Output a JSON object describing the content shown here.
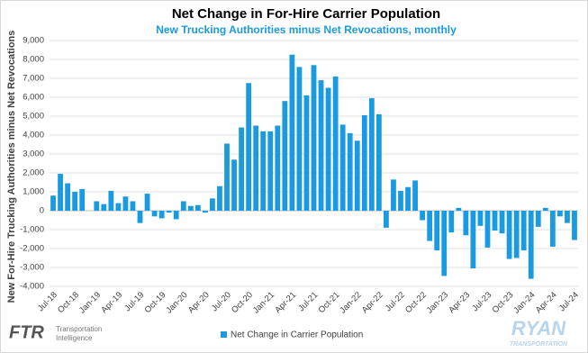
{
  "chart_data": {
    "type": "bar",
    "title": "Net Change in For-Hire Carrier Population",
    "subtitle": "New Trucking Authorities minus Net Revocations, monthly",
    "y_label": "New For-Hire Trucking Authorities minus Net Revocations",
    "categories": [
      "Jul-18",
      null,
      null,
      "Oct-18",
      null,
      null,
      "Jan-19",
      null,
      null,
      "Apr-19",
      null,
      null,
      "Jul-19",
      null,
      null,
      "Oct-19",
      null,
      null,
      "Jan-20",
      null,
      null,
      "Apr-20",
      null,
      null,
      "Jul-20",
      null,
      null,
      "Oct-20",
      null,
      null,
      "Jan-21",
      null,
      null,
      "Apr-21",
      null,
      null,
      "Jul-21",
      null,
      null,
      "Oct-21",
      null,
      null,
      "Jan-22",
      null,
      null,
      "Apr-22",
      null,
      null,
      "Jul-22",
      null,
      null,
      "Oct-22",
      null,
      null,
      "Jan-23",
      null,
      null,
      "Apr-23",
      null,
      null,
      "Jul-23",
      null,
      null,
      "Oct-23",
      null,
      null,
      "Jan-24",
      null,
      null,
      "Apr-24",
      null,
      null,
      "Jul-24"
    ],
    "series": [
      {
        "name": "Net Change in Carrier Population",
        "color": "#1a9ae0",
        "values": [
          800,
          1950,
          1450,
          1000,
          1150,
          0,
          500,
          350,
          1050,
          400,
          750,
          500,
          -650,
          900,
          -300,
          -400,
          -100,
          -450,
          500,
          250,
          300,
          -100,
          650,
          1300,
          3550,
          2700,
          4400,
          6750,
          4500,
          4200,
          4200,
          4500,
          5800,
          8250,
          7600,
          6100,
          7700,
          6900,
          6500,
          7100,
          4550,
          4100,
          3700,
          5050,
          5950,
          5100,
          -900,
          1650,
          1050,
          1250,
          1600,
          -500,
          -1600,
          -2100,
          -3450,
          -1150,
          150,
          -1300,
          -3050,
          -800,
          -1950,
          -1050,
          -1200,
          -2550,
          -2500,
          -2100,
          -3600,
          -850,
          150,
          -1900,
          -300,
          -650,
          -1550
        ]
      }
    ],
    "ylim": [
      -4000,
      9000
    ],
    "yticks": [
      {
        "value": -4000,
        "label": "-4,000"
      },
      {
        "value": -3000,
        "label": "-3,000"
      },
      {
        "value": -2000,
        "label": "-2,000"
      },
      {
        "value": -1000,
        "label": "-1,000"
      },
      0,
      {
        "value": 1000,
        "label": "1,000"
      },
      {
        "value": 2000,
        "label": "2,000"
      },
      {
        "value": 3000,
        "label": "3,000"
      },
      {
        "value": 4000,
        "label": "4,000"
      },
      {
        "value": 5000,
        "label": "5,000"
      },
      {
        "value": 6000,
        "label": "6,000"
      },
      {
        "value": 7000,
        "label": "7,000"
      },
      {
        "value": 8000,
        "label": "8,000"
      },
      {
        "value": 9000,
        "label": "9,000"
      }
    ],
    "grid": true,
    "legend": "bottom"
  },
  "branding": {
    "left_logo": "FTR",
    "left_tagline": [
      "Transportation",
      "Intelligence"
    ],
    "right_logo": "RYAN",
    "right_tagline": "TRANSPORTATION"
  }
}
